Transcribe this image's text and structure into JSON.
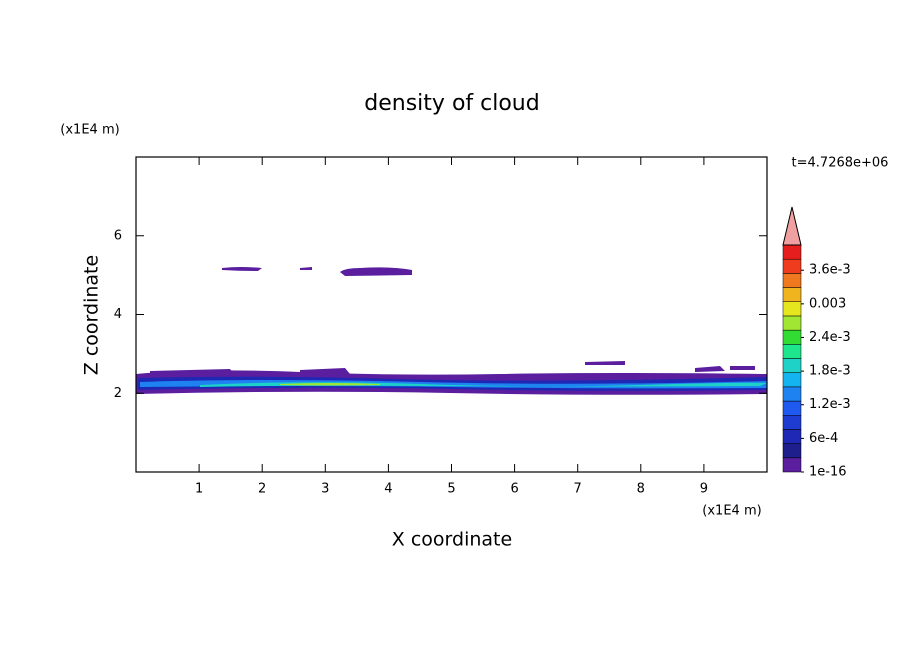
{
  "chart_data": {
    "type": "contour",
    "title": "density of cloud",
    "x_label": "X coordinate",
    "y_label": "Z coordinate",
    "x_unit": "(x1E4 m)",
    "y_unit": "(x1E4 m)",
    "time_label": "t=4.7268e+06",
    "xlim": [
      0,
      10
    ],
    "ylim": [
      0,
      8
    ],
    "xticks": [
      1,
      2,
      3,
      4,
      5,
      6,
      7,
      8,
      9
    ],
    "yticks": [
      2,
      4,
      6
    ],
    "colorbar": {
      "clim": [
        0,
        0.00405
      ],
      "ticks": [
        1e-16,
        {
          "value": 0.0006,
          "label": "6e-4"
        },
        {
          "value": 0.0012,
          "label": "1.2e-3"
        },
        {
          "value": 0.0018,
          "label": "1.8e-3"
        },
        {
          "value": 0.0024,
          "label": "2.4e-3"
        },
        0.003,
        {
          "value": 0.0036,
          "label": "3.6e-3"
        }
      ],
      "colors": [
        "#5a1e9e",
        "#1e1e8c",
        "#1e28b4",
        "#1e3cd2",
        "#1e5af0",
        "#1e82f0",
        "#14b4f0",
        "#1ed2c8",
        "#1ee68c",
        "#32dc32",
        "#a0e632",
        "#e6e61e",
        "#f0b41e",
        "#f0781e",
        "#f03c1e",
        "#e61e1e"
      ],
      "over_color": "#f0a0a0"
    }
  }
}
